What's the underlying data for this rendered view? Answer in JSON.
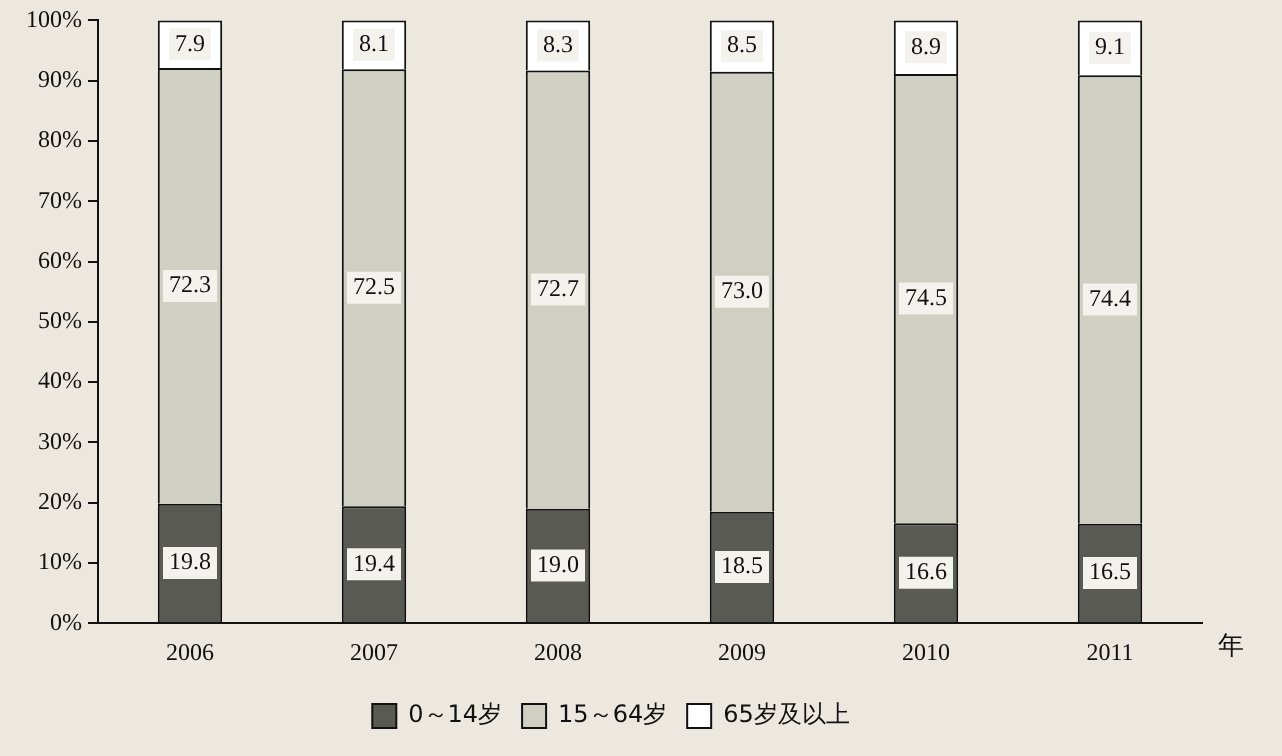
{
  "chart_data": {
    "type": "bar",
    "stacked": true,
    "xlabel": "年",
    "categories": [
      "2006",
      "2007",
      "2008",
      "2009",
      "2010",
      "2011"
    ],
    "series": [
      {
        "name": "0～14岁",
        "color": "#5a5a55",
        "values": [
          19.8,
          19.4,
          19.0,
          18.5,
          16.6,
          16.5
        ],
        "value_labels": [
          "19.8",
          "19.4",
          "19.0",
          "18.5",
          "16.6",
          "16.5"
        ]
      },
      {
        "name": "15～64岁",
        "color": "#cfcfc4",
        "values": [
          72.3,
          72.5,
          72.7,
          73.0,
          74.5,
          74.4
        ],
        "value_labels": [
          "72.3",
          "72.5",
          "72.7",
          "73.0",
          "74.5",
          "74.4"
        ]
      },
      {
        "name": "65岁及以上",
        "color": "#ffffff",
        "values": [
          7.9,
          8.1,
          8.3,
          8.5,
          8.9,
          9.1
        ],
        "value_labels": [
          "7.9",
          "8.1",
          "8.3",
          "8.5",
          "8.9",
          "9.1"
        ]
      }
    ],
    "ylim": [
      0,
      100
    ],
    "yticks": [
      {
        "value": 0,
        "label": "0%"
      },
      {
        "value": 10,
        "label": "10%"
      },
      {
        "value": 20,
        "label": "20%"
      },
      {
        "value": 30,
        "label": "30%"
      },
      {
        "value": 40,
        "label": "40%"
      },
      {
        "value": 50,
        "label": "50%"
      },
      {
        "value": 60,
        "label": "60%"
      },
      {
        "value": 70,
        "label": "70%"
      },
      {
        "value": 80,
        "label": "80%"
      },
      {
        "value": 90,
        "label": "90%"
      },
      {
        "value": 100,
        "label": "100%"
      }
    ],
    "grid": false,
    "legend": "bottom"
  }
}
